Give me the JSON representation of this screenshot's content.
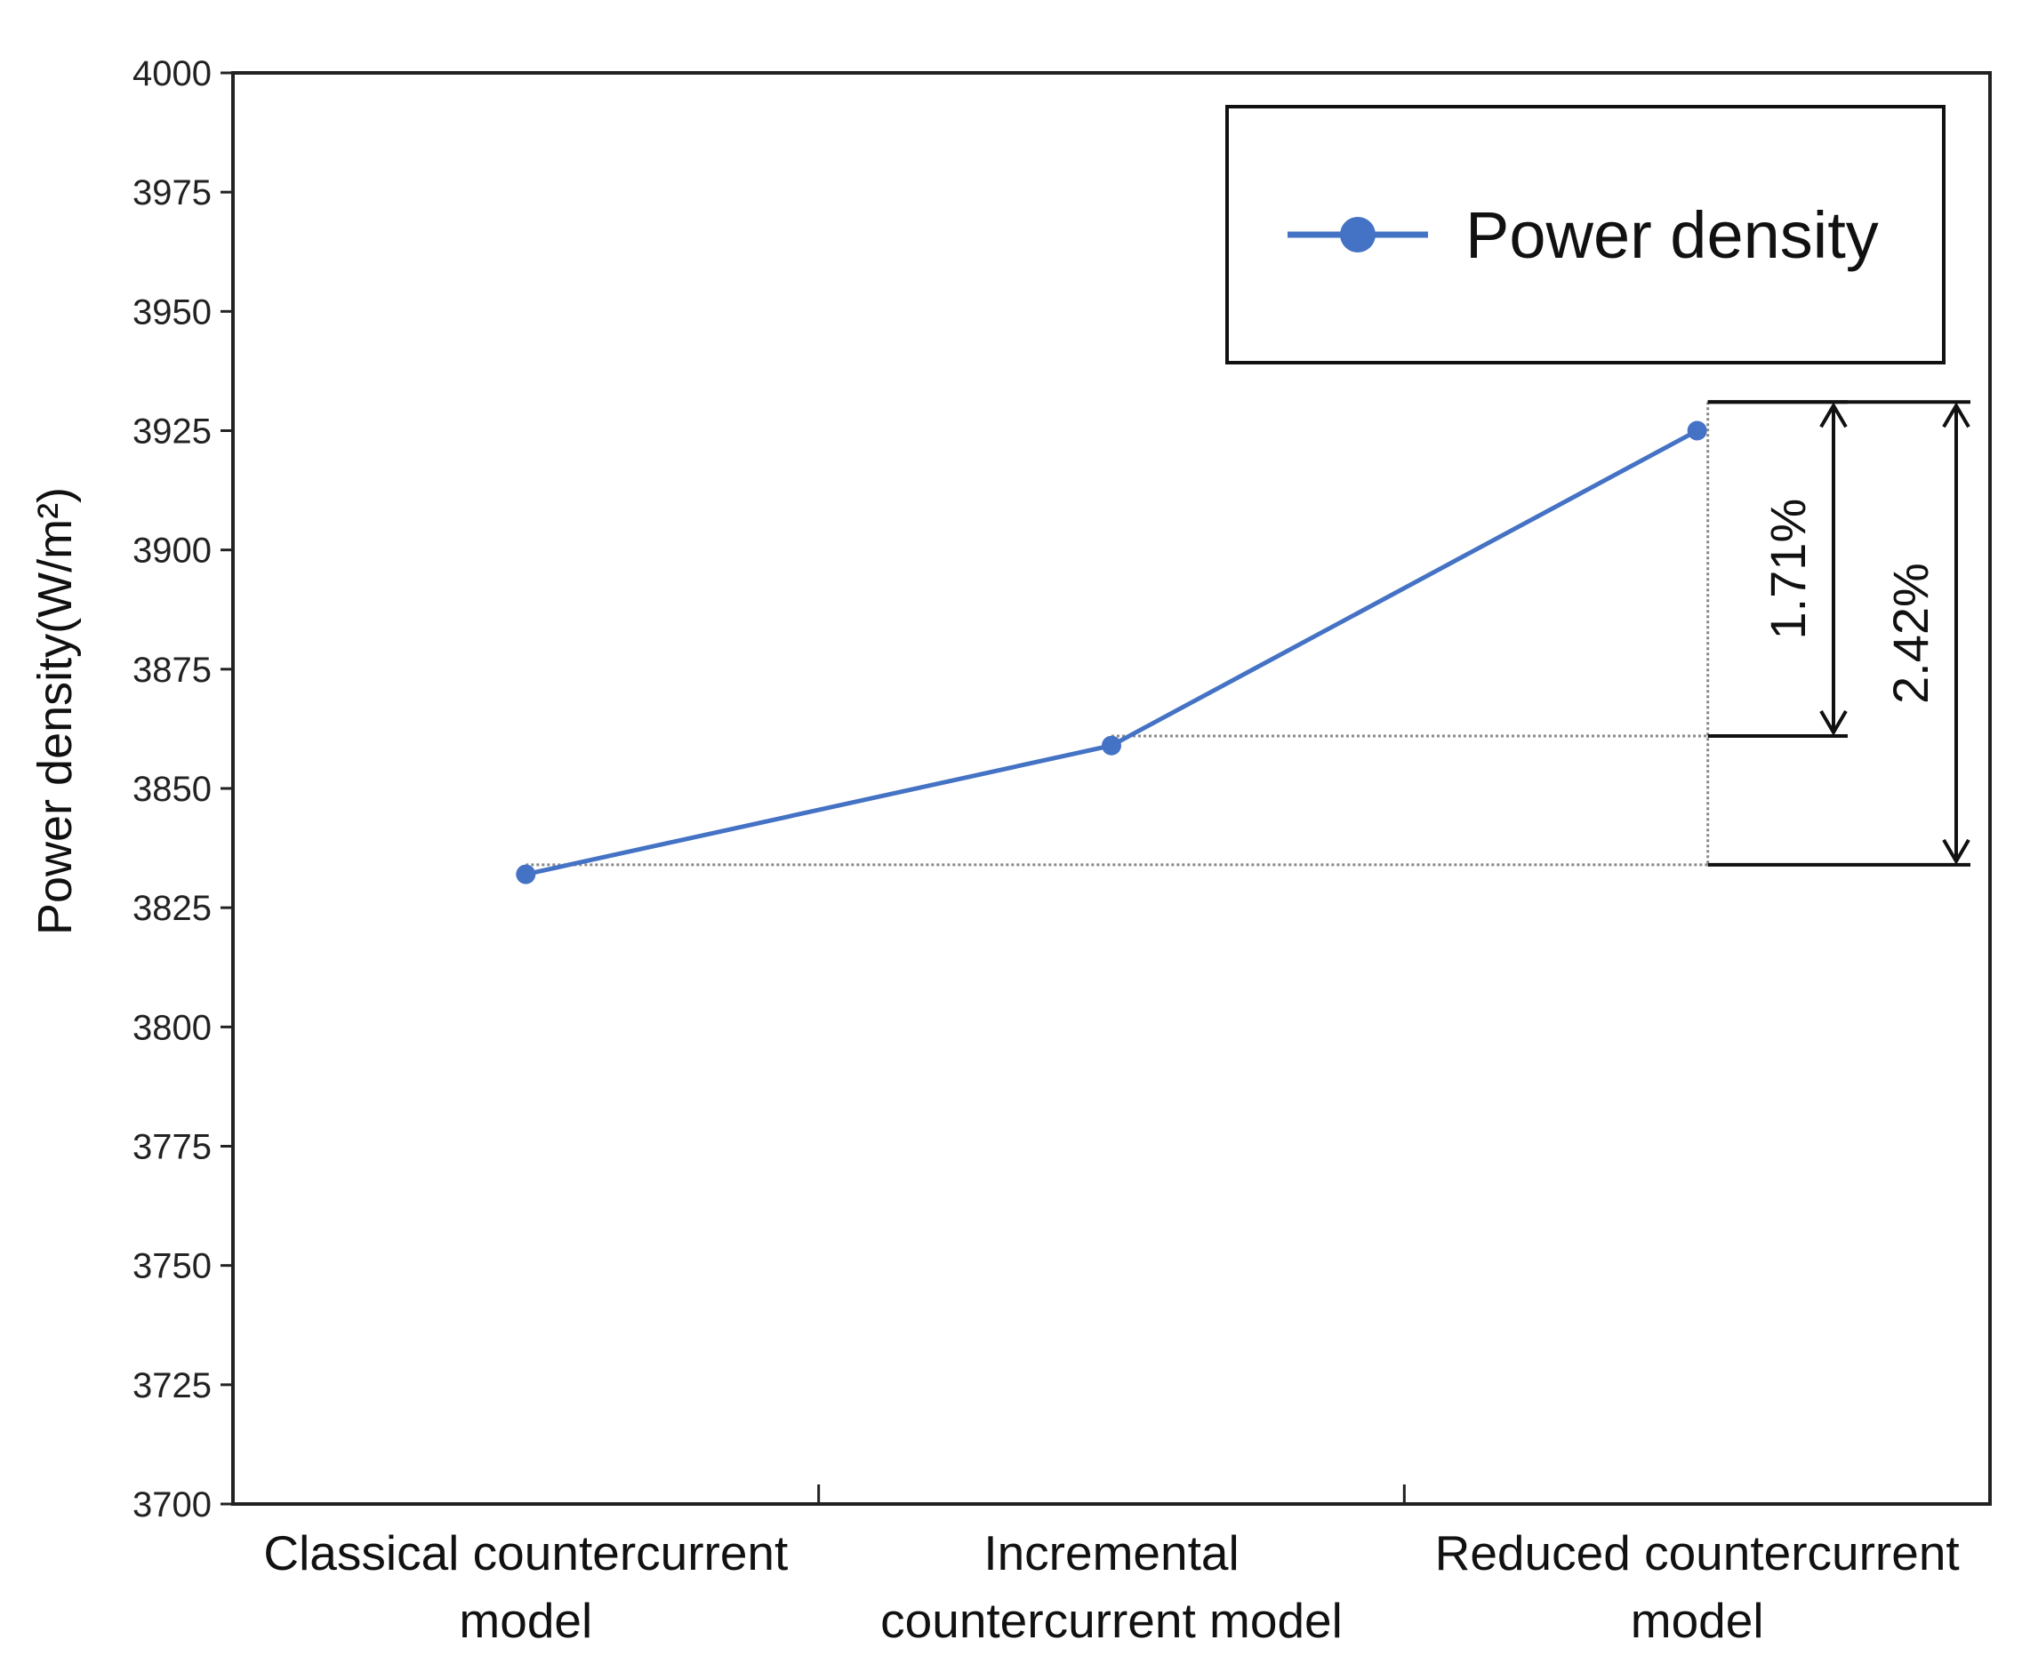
{
  "chart_data": {
    "type": "line",
    "categories": [
      [
        "Classical countercurrent",
        "model"
      ],
      [
        "Incremental",
        "countercurrent model"
      ],
      [
        "Reduced countercurrent",
        "model"
      ]
    ],
    "series": [
      {
        "name": "Power density",
        "values": [
          3832,
          3859,
          3925
        ],
        "color": "#4472C4"
      }
    ],
    "ylabel": "Power density(W/m²)",
    "ylim": [
      3700,
      4000
    ],
    "yticks": [
      3700,
      3725,
      3750,
      3775,
      3800,
      3825,
      3850,
      3875,
      3900,
      3925,
      3950,
      3975,
      4000
    ],
    "legend_position": "top-right",
    "grid": false,
    "annotations": [
      {
        "label": "1.71%",
        "from": 3861,
        "to": 3931
      },
      {
        "label": "2.42%",
        "from": 3834,
        "to": 3931
      }
    ],
    "reference_lines": [
      3861,
      3834
    ]
  }
}
